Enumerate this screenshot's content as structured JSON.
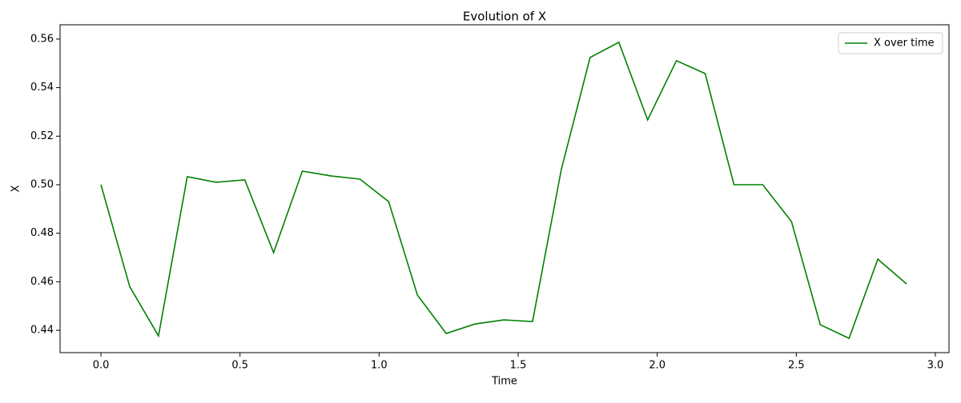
{
  "chart_data": {
    "type": "line",
    "title": "Evolution of X",
    "x_label": "Time",
    "y_label": "X",
    "x": [
      0,
      0.1034,
      0.2069,
      0.3103,
      0.4138,
      0.5172,
      0.6207,
      0.7241,
      0.8276,
      0.931,
      1.0345,
      1.1379,
      1.2414,
      1.3448,
      1.4483,
      1.5517,
      1.6552,
      1.7586,
      1.8621,
      1.9655,
      2.069,
      2.1724,
      2.2759,
      2.3793,
      2.4828,
      2.5862,
      2.6897,
      2.7931,
      2.8966
    ],
    "series": [
      {
        "name": "X over time",
        "color": "#008000",
        "values": [
          0.5,
          0.458,
          0.4377,
          0.5033,
          0.501,
          0.502,
          0.472,
          0.5056,
          0.5036,
          0.5023,
          0.493,
          0.4545,
          0.4387,
          0.4426,
          0.4443,
          0.4436,
          0.5063,
          0.5524,
          0.5587,
          0.5267,
          0.5511,
          0.5458,
          0.5,
          0.5,
          0.4848,
          0.4423,
          0.4367,
          0.4693,
          0.4591
        ]
      }
    ],
    "xlim": [
      -0.147,
      3.049
    ],
    "ylim": [
      0.4308,
      0.5659
    ],
    "xticks": [
      {
        "value": 0,
        "label": "0.0"
      },
      {
        "value": 0.5,
        "label": "0.5"
      },
      {
        "value": 1,
        "label": "1.0"
      },
      {
        "value": 1.5,
        "label": "1.5"
      },
      {
        "value": 2,
        "label": "2.0"
      },
      {
        "value": 2.5,
        "label": "2.5"
      },
      {
        "value": 3,
        "label": "3.0"
      }
    ],
    "yticks": [
      0.44,
      0.46,
      0.48,
      {
        "value": 0.5,
        "label": "0.50"
      },
      0.52,
      0.54,
      0.56
    ],
    "legend": "upper right"
  }
}
